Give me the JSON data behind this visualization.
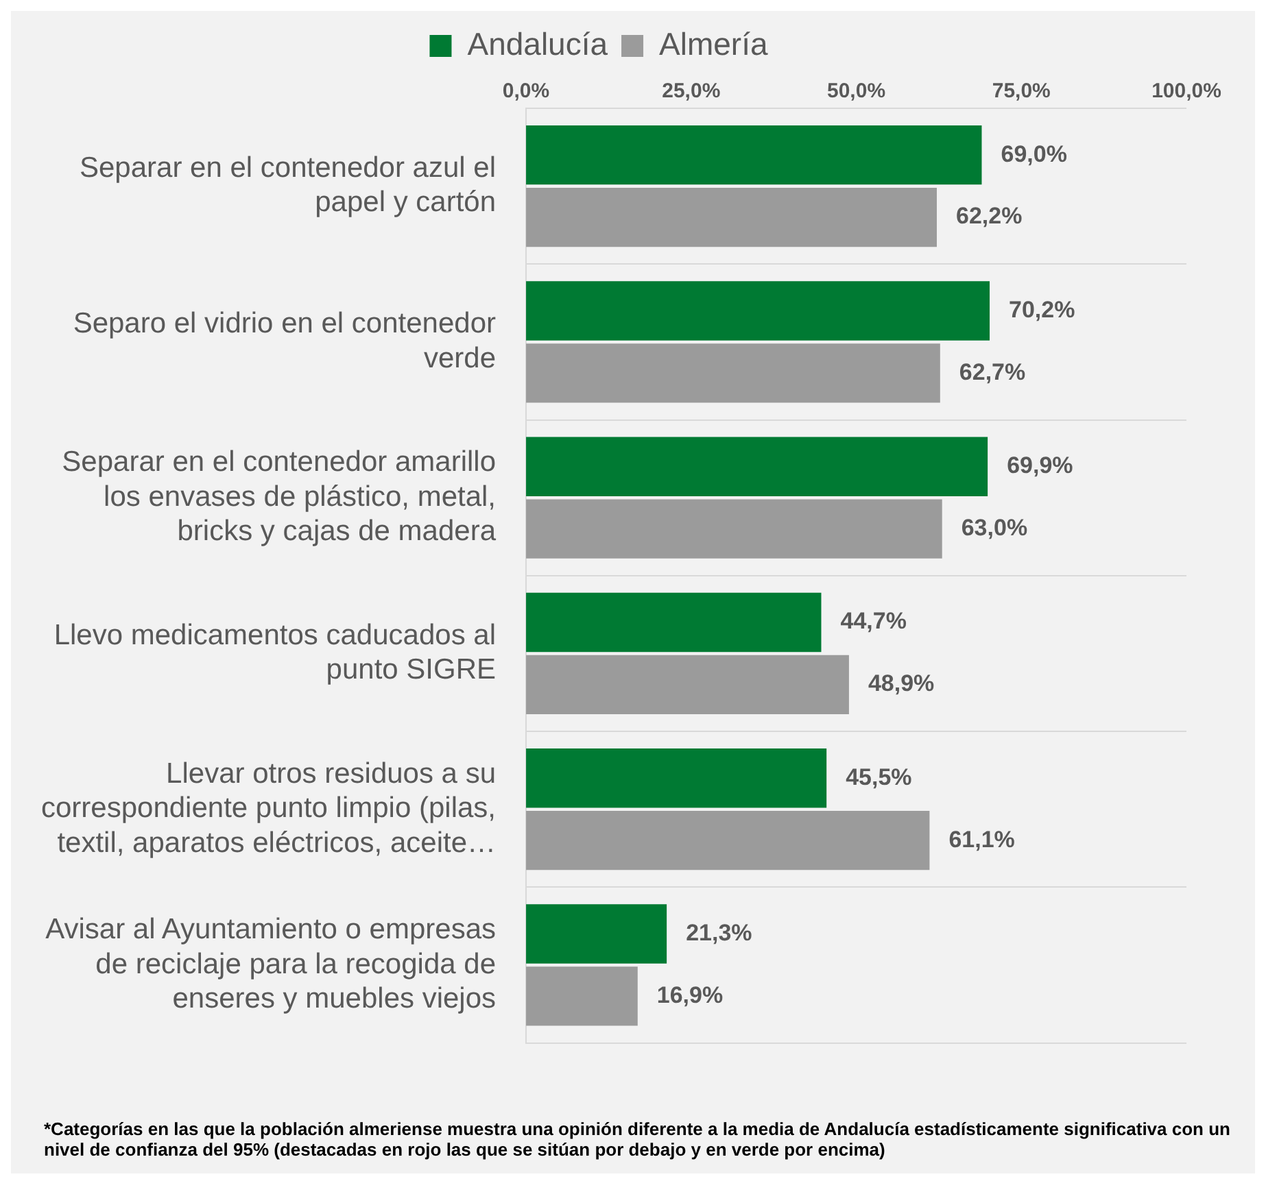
{
  "chart_data": {
    "type": "bar",
    "orientation": "horizontal",
    "categories": [
      "Separar en el contenedor azul el\npapel y cartón",
      "Separo el vidrio en el contenedor\nverde",
      "Separar en el contenedor amarillo\nlos envases de plástico, metal,\nbricks y cajas de madera",
      "Llevo medicamentos caducados al\npunto SIGRE",
      "Llevar otros residuos a su\ncorrespondiente punto limpio (pilas,\ntextil, aparatos eléctricos, aceite…",
      "Avisar al Ayuntamiento o empresas\nde reciclaje para la recogida de\nenseres y muebles viejos"
    ],
    "series": [
      {
        "name": "Andalucía",
        "color": "#007a33",
        "values": [
          69.0,
          70.2,
          69.9,
          44.7,
          45.5,
          21.3
        ],
        "value_labels": [
          "69,0%",
          "70,2%",
          "69,9%",
          "44,7%",
          "45,5%",
          "21,3%"
        ]
      },
      {
        "name": "Almería",
        "color": "#9b9b9b",
        "values": [
          62.2,
          62.7,
          63.0,
          48.9,
          61.1,
          16.9
        ],
        "value_labels": [
          "62,2%",
          "62,7%",
          "63,0%",
          "48,9%",
          "61,1%",
          "16,9%"
        ]
      }
    ],
    "xlim": [
      0,
      100
    ],
    "xticks": [
      {
        "value": 0,
        "label": "0,0%"
      },
      {
        "value": 25,
        "label": "25,0%"
      },
      {
        "value": 50,
        "label": "50,0%"
      },
      {
        "value": 75,
        "label": "75,0%"
      },
      {
        "value": 100,
        "label": "100,0%"
      }
    ],
    "grid": "y",
    "legend": "top",
    "annotations": [
      "*Categorías en las que la población almeriense muestra una opinión diferente a la media de Andalucía estadísticamente significativa con un nivel de confianza del 95% (destacadas en rojo las que se sitúan por debajo y en verde por encima)"
    ]
  }
}
